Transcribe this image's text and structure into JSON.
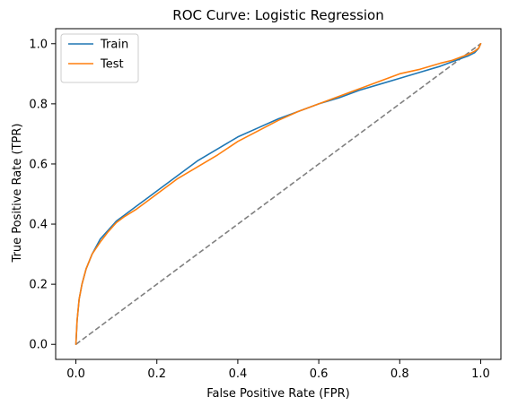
{
  "chart_data": {
    "type": "line",
    "title": "ROC Curve: Logistic Regression",
    "xlabel": "False Positive Rate (FPR)",
    "ylabel": "True Positive Rate (TPR)",
    "xlim": [
      -0.05,
      1.05
    ],
    "ylim": [
      -0.05,
      1.05
    ],
    "xticks": [
      0.0,
      0.2,
      0.4,
      0.6,
      0.8,
      1.0
    ],
    "yticks": [
      0.0,
      0.2,
      0.4,
      0.6,
      0.8,
      1.0
    ],
    "xtick_labels": [
      "0.0",
      "0.2",
      "0.4",
      "0.6",
      "0.8",
      "1.0"
    ],
    "ytick_labels": [
      "0.0",
      "0.2",
      "0.4",
      "0.6",
      "0.8",
      "1.0"
    ],
    "grid": false,
    "legend_position": "top-left",
    "series": [
      {
        "name": "Train",
        "color": "#1f77b4",
        "x": [
          0.0,
          0.003,
          0.008,
          0.015,
          0.025,
          0.04,
          0.06,
          0.08,
          0.1,
          0.12,
          0.15,
          0.18,
          0.2,
          0.25,
          0.3,
          0.35,
          0.4,
          0.45,
          0.5,
          0.55,
          0.6,
          0.65,
          0.7,
          0.75,
          0.8,
          0.85,
          0.9,
          0.93,
          0.95,
          0.97,
          0.985,
          0.995,
          1.0
        ],
        "y": [
          0.0,
          0.08,
          0.15,
          0.2,
          0.25,
          0.3,
          0.35,
          0.38,
          0.41,
          0.43,
          0.46,
          0.49,
          0.51,
          0.56,
          0.61,
          0.65,
          0.69,
          0.72,
          0.75,
          0.775,
          0.8,
          0.82,
          0.845,
          0.865,
          0.885,
          0.905,
          0.925,
          0.94,
          0.95,
          0.96,
          0.97,
          0.985,
          1.0
        ]
      },
      {
        "name": "Test",
        "color": "#ff7f0e",
        "x": [
          0.0,
          0.003,
          0.008,
          0.015,
          0.025,
          0.04,
          0.06,
          0.08,
          0.1,
          0.12,
          0.15,
          0.18,
          0.2,
          0.25,
          0.3,
          0.35,
          0.4,
          0.45,
          0.5,
          0.55,
          0.6,
          0.65,
          0.7,
          0.75,
          0.8,
          0.85,
          0.9,
          0.93,
          0.95,
          0.97,
          0.985,
          0.995,
          1.0
        ],
        "y": [
          0.0,
          0.08,
          0.15,
          0.2,
          0.25,
          0.3,
          0.34,
          0.375,
          0.405,
          0.425,
          0.45,
          0.48,
          0.5,
          0.55,
          0.59,
          0.63,
          0.675,
          0.71,
          0.745,
          0.775,
          0.8,
          0.825,
          0.85,
          0.875,
          0.9,
          0.915,
          0.935,
          0.945,
          0.955,
          0.965,
          0.975,
          0.985,
          1.0
        ]
      }
    ],
    "reference_line": {
      "color": "#808080",
      "style": "dashed",
      "x": [
        0.0,
        1.0
      ],
      "y": [
        0.0,
        1.0
      ]
    }
  }
}
